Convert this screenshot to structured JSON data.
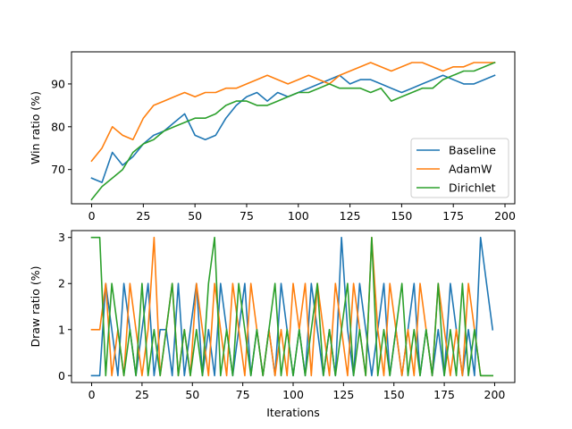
{
  "chart_data": [
    {
      "type": "line",
      "xlabel": "",
      "ylabel": "Win ratio (%)",
      "xlim": [
        -9.75,
        204.75
      ],
      "ylim": [
        62.0,
        97.5
      ],
      "xticks": [
        0,
        25,
        50,
        75,
        100,
        125,
        150,
        175,
        200
      ],
      "yticks": [
        70,
        80,
        90
      ],
      "grid": false,
      "legend": {
        "position": "lower-right"
      },
      "x": [
        0,
        5,
        10,
        15,
        20,
        25,
        30,
        35,
        40,
        45,
        50,
        55,
        60,
        65,
        70,
        75,
        80,
        85,
        90,
        95,
        100,
        105,
        110,
        115,
        120,
        125,
        130,
        135,
        140,
        145,
        150,
        155,
        160,
        165,
        170,
        175,
        180,
        185,
        190,
        195
      ],
      "series": [
        {
          "name": "Baseline",
          "color": "#1f77b4",
          "values": [
            68,
            67,
            74,
            71,
            73,
            76,
            78,
            79,
            81,
            83,
            78,
            77,
            78,
            82,
            85,
            87,
            88,
            86,
            88,
            87,
            88,
            89,
            90,
            91,
            92,
            90,
            91,
            91,
            90,
            89,
            88,
            89,
            90,
            91,
            92,
            91,
            90,
            90,
            91,
            92
          ]
        },
        {
          "name": "AdamW",
          "color": "#ff7f0e",
          "values": [
            72,
            75,
            80,
            78,
            77,
            82,
            85,
            86,
            87,
            88,
            87,
            88,
            88,
            89,
            89,
            90,
            91,
            92,
            91,
            90,
            91,
            92,
            91,
            90,
            92,
            93,
            94,
            95,
            94,
            93,
            94,
            95,
            95,
            94,
            93,
            94,
            94,
            95,
            95,
            95
          ]
        },
        {
          "name": "Dirichlet",
          "color": "#2ca02c",
          "values": [
            63,
            66,
            68,
            70,
            74,
            76,
            77,
            79,
            80,
            81,
            82,
            82,
            83,
            85,
            86,
            86,
            85,
            85,
            86,
            87,
            88,
            88,
            89,
            90,
            89,
            89,
            89,
            88,
            89,
            86,
            87,
            88,
            89,
            89,
            91,
            92,
            93,
            93,
            94,
            95
          ]
        }
      ]
    },
    {
      "type": "line",
      "xlabel": "Iterations",
      "ylabel": "Draw ratio (%)",
      "xlim": [
        -10.0,
        210.0
      ],
      "ylim": [
        -0.15,
        3.15
      ],
      "xticks": [
        0,
        25,
        50,
        75,
        100,
        125,
        150,
        175,
        200
      ],
      "yticks": [
        0,
        1,
        2,
        3
      ],
      "grid": false,
      "x": [
        0,
        4,
        7,
        10,
        13,
        16,
        19,
        22,
        25,
        28,
        31,
        34,
        37,
        40,
        43,
        46,
        49,
        52,
        55,
        58,
        61,
        64,
        67,
        70,
        73,
        76,
        79,
        82,
        85,
        88,
        91,
        94,
        97,
        100,
        103,
        106,
        109,
        112,
        115,
        118,
        121,
        124,
        127,
        130,
        133,
        136,
        139,
        142,
        145,
        148,
        151,
        154,
        157,
        160,
        163,
        166,
        169,
        172,
        175,
        178,
        181,
        184,
        187,
        190,
        193,
        196,
        199
      ],
      "series": [
        {
          "name": "Baseline",
          "color": "#1f77b4",
          "values": [
            0,
            0,
            2,
            1,
            0,
            2,
            1,
            0,
            1,
            2,
            0,
            1,
            1,
            0,
            2,
            0,
            1,
            2,
            0,
            1,
            0,
            2,
            1,
            0,
            1,
            2,
            0,
            1,
            0,
            1,
            0,
            2,
            1,
            0,
            1,
            0,
            2,
            1,
            0,
            1,
            0,
            3,
            1,
            0,
            2,
            1,
            0,
            1,
            2,
            0,
            1,
            0,
            1,
            2,
            0,
            1,
            0,
            1,
            0,
            2,
            1,
            0,
            1,
            0,
            3,
            2,
            1
          ]
        },
        {
          "name": "AdamW",
          "color": "#ff7f0e",
          "values": [
            1,
            1,
            2,
            0,
            1,
            0,
            2,
            1,
            0,
            1,
            3,
            0,
            1,
            2,
            0,
            1,
            0,
            2,
            1,
            0,
            2,
            1,
            0,
            2,
            1,
            0,
            2,
            1,
            0,
            1,
            0,
            1,
            0,
            2,
            1,
            2,
            0,
            2,
            1,
            0,
            2,
            1,
            0,
            2,
            1,
            0,
            3,
            1,
            0,
            2,
            1,
            0,
            1,
            0,
            2,
            1,
            0,
            2,
            1,
            0,
            1,
            0,
            2,
            1,
            0,
            0,
            0
          ]
        },
        {
          "name": "Dirichlet",
          "color": "#2ca02c",
          "values": [
            3,
            3,
            0,
            2,
            1,
            0,
            1,
            0,
            2,
            0,
            1,
            0,
            1,
            2,
            0,
            1,
            0,
            1,
            0,
            2,
            3,
            0,
            1,
            0,
            2,
            1,
            0,
            1,
            0,
            1,
            2,
            0,
            1,
            0,
            1,
            0,
            1,
            2,
            0,
            1,
            0,
            1,
            2,
            0,
            1,
            0,
            3,
            0,
            1,
            0,
            1,
            2,
            0,
            1,
            0,
            1,
            0,
            2,
            0,
            1,
            0,
            2,
            0,
            1,
            0,
            0,
            0
          ]
        }
      ]
    }
  ]
}
